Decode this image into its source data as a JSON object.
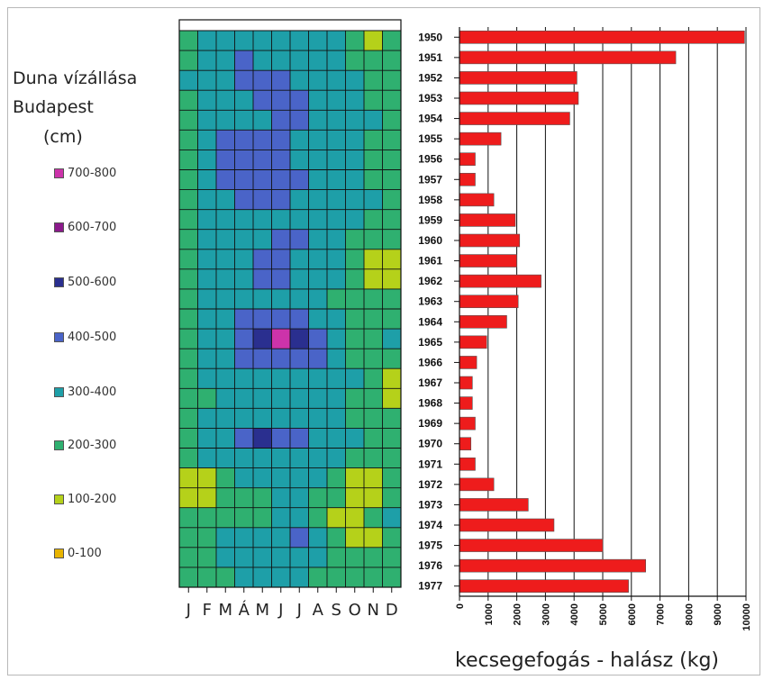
{
  "legend": {
    "title_lines": [
      "Duna vízállása",
      "Budapest",
      "(cm)"
    ],
    "items": [
      {
        "label": "700-800",
        "color": "#cc33aa"
      },
      {
        "label": "600-700",
        "color": "#8b1a8b"
      },
      {
        "label": "500-600",
        "color": "#2a2f8f"
      },
      {
        "label": "400-500",
        "color": "#4a64c8"
      },
      {
        "label": "300-400",
        "color": "#1e9fa8"
      },
      {
        "label": "200-300",
        "color": "#2fb070"
      },
      {
        "label": "100-200",
        "color": "#b5d11a"
      },
      {
        "label": "0-100",
        "color": "#e8b400"
      }
    ]
  },
  "heatmap": {
    "months": [
      "J",
      "F",
      "M",
      "Á",
      "M",
      "J",
      "J",
      "A",
      "S",
      "O",
      "N",
      "D"
    ],
    "class_colors": [
      "#e8b400",
      "#b5d11a",
      "#2fb070",
      "#1e9fa8",
      "#4a64c8",
      "#2a2f8f",
      "#8b1a8b",
      "#cc33aa"
    ]
  },
  "chart_data": [
    {
      "type": "heatmap",
      "title": "Duna vízállása Budapest (cm)",
      "x_labels": [
        "J",
        "F",
        "M",
        "Á",
        "M",
        "J",
        "J",
        "A",
        "S",
        "O",
        "N",
        "D"
      ],
      "y_labels": [
        "1950",
        "1951",
        "1952",
        "1953",
        "1954",
        "1955",
        "1956",
        "1957",
        "1958",
        "1959",
        "1960",
        "1961",
        "1962",
        "1963",
        "1964",
        "1965",
        "1966",
        "1967",
        "1968",
        "1969",
        "1970",
        "1971",
        "1972",
        "1973",
        "1974",
        "1975",
        "1976",
        "1977"
      ],
      "legend": [
        "700-800",
        "600-700",
        "500-600",
        "400-500",
        "300-400",
        "200-300",
        "100-200",
        "0-100"
      ],
      "values_class_index": [
        [
          2,
          3,
          3,
          3,
          3,
          3,
          3,
          3,
          3,
          2,
          1,
          2
        ],
        [
          2,
          3,
          3,
          4,
          3,
          3,
          3,
          3,
          3,
          2,
          2,
          2
        ],
        [
          3,
          3,
          3,
          4,
          4,
          4,
          3,
          3,
          3,
          3,
          2,
          2
        ],
        [
          2,
          3,
          3,
          3,
          4,
          4,
          4,
          3,
          3,
          3,
          2,
          2
        ],
        [
          2,
          3,
          3,
          3,
          3,
          4,
          4,
          3,
          3,
          3,
          3,
          2
        ],
        [
          2,
          3,
          4,
          4,
          4,
          4,
          3,
          3,
          3,
          3,
          2,
          2
        ],
        [
          2,
          3,
          4,
          4,
          4,
          4,
          3,
          3,
          3,
          3,
          2,
          2
        ],
        [
          2,
          3,
          4,
          4,
          4,
          4,
          4,
          3,
          3,
          3,
          2,
          2
        ],
        [
          2,
          3,
          3,
          4,
          4,
          4,
          3,
          3,
          3,
          3,
          3,
          2
        ],
        [
          2,
          3,
          3,
          3,
          3,
          3,
          3,
          3,
          3,
          3,
          2,
          2
        ],
        [
          2,
          3,
          3,
          3,
          3,
          4,
          4,
          3,
          3,
          2,
          2,
          2
        ],
        [
          2,
          3,
          3,
          3,
          4,
          4,
          3,
          3,
          3,
          2,
          1,
          1
        ],
        [
          2,
          3,
          3,
          3,
          4,
          4,
          3,
          3,
          3,
          2,
          1,
          1
        ],
        [
          2,
          3,
          3,
          3,
          3,
          3,
          3,
          3,
          2,
          2,
          2,
          2
        ],
        [
          2,
          3,
          3,
          4,
          4,
          4,
          4,
          3,
          3,
          2,
          2,
          2
        ],
        [
          2,
          3,
          3,
          4,
          5,
          7,
          5,
          4,
          3,
          2,
          2,
          3
        ],
        [
          2,
          3,
          3,
          4,
          4,
          4,
          4,
          4,
          3,
          2,
          2,
          2
        ],
        [
          2,
          3,
          3,
          3,
          3,
          3,
          3,
          3,
          3,
          3,
          2,
          1
        ],
        [
          2,
          2,
          3,
          3,
          3,
          3,
          3,
          3,
          3,
          2,
          2,
          1
        ],
        [
          2,
          3,
          3,
          3,
          3,
          3,
          3,
          3,
          3,
          2,
          2,
          2
        ],
        [
          2,
          3,
          3,
          4,
          5,
          4,
          4,
          3,
          3,
          3,
          2,
          2
        ],
        [
          2,
          3,
          3,
          3,
          3,
          3,
          3,
          3,
          3,
          2,
          2,
          2
        ],
        [
          1,
          1,
          2,
          3,
          3,
          3,
          3,
          3,
          2,
          1,
          1,
          2
        ],
        [
          1,
          1,
          2,
          2,
          2,
          3,
          3,
          2,
          2,
          1,
          1,
          2
        ],
        [
          2,
          2,
          2,
          2,
          2,
          3,
          3,
          2,
          1,
          1,
          2,
          3
        ],
        [
          2,
          2,
          3,
          3,
          3,
          3,
          4,
          3,
          2,
          1,
          1,
          2
        ],
        [
          2,
          2,
          3,
          3,
          3,
          3,
          3,
          3,
          2,
          2,
          2,
          2
        ],
        [
          2,
          2,
          2,
          3,
          3,
          3,
          3,
          2,
          2,
          2,
          2,
          2
        ]
      ]
    },
    {
      "type": "bar",
      "orientation": "horizontal",
      "categories": [
        "1950",
        "1951",
        "1952",
        "1953",
        "1954",
        "1955",
        "1956",
        "1957",
        "1958",
        "1959",
        "1960",
        "1961",
        "1962",
        "1963",
        "1964",
        "1965",
        "1966",
        "1967",
        "1968",
        "1969",
        "1970",
        "1971",
        "1972",
        "1973",
        "1974",
        "1975",
        "1976",
        "1977"
      ],
      "values": [
        9950,
        7550,
        4100,
        4150,
        3850,
        1450,
        550,
        550,
        1200,
        1950,
        2100,
        2000,
        2850,
        2050,
        1650,
        950,
        600,
        450,
        450,
        550,
        400,
        550,
        1200,
        2400,
        3300,
        5000,
        6500,
        5900
      ],
      "xlabel": "kecsegefogás - halász (kg)",
      "xlim": [
        0,
        10000
      ],
      "xticks": [
        0,
        1000,
        2000,
        3000,
        4000,
        5000,
        6000,
        7000,
        8000,
        9000,
        10000
      ],
      "bar_color": "#ee1c1c",
      "grid": true
    }
  ]
}
